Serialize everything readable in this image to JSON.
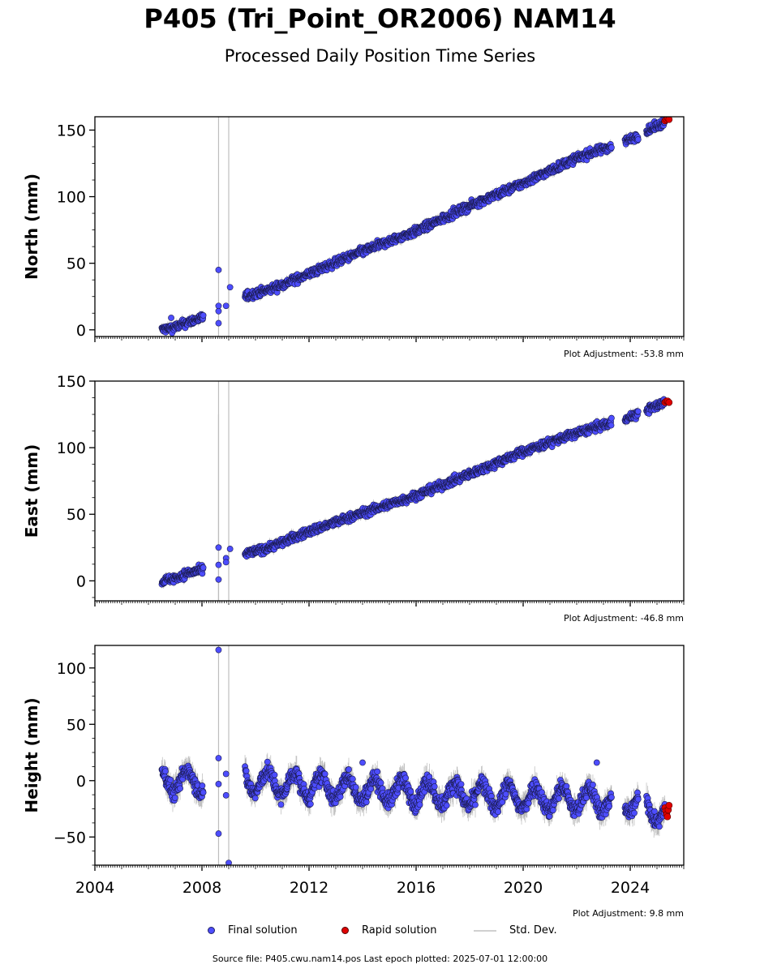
{
  "title": "P405 (Tri_Point_OR2006) NAM14",
  "subtitle": "Processed Daily Position Time Series",
  "footer": "Source file: P405.cwu.nam14.pos  Last epoch plotted: 2025-07-01 12:00:00",
  "legend": {
    "final": "Final solution",
    "rapid": "Rapid solution",
    "std": "Std. Dev."
  },
  "colors": {
    "final_fill": "#4d4dff",
    "final_edge": "#1a1a4d",
    "rapid_fill": "#e00000",
    "std_line": "#bdbdbd"
  },
  "x_ticks": [
    "2004",
    "2008",
    "2012",
    "2016",
    "2020",
    "2024"
  ],
  "chart_data": [
    {
      "type": "scatter",
      "ylabel": "North (mm)",
      "adjustment": "Plot Adjustment: -53.8 mm",
      "xlim": [
        2004,
        2026
      ],
      "ylim": [
        -5,
        160
      ],
      "yticks": [
        0,
        50,
        100,
        150
      ],
      "ytick_labels": [
        "0",
        "50",
        "100",
        "150"
      ],
      "x_tick_labels_shown": false,
      "series": [
        {
          "kind": "final",
          "trend": [
            [
              2006.5,
              0
            ],
            [
              2007.0,
              2
            ],
            [
              2007.5,
              6
            ],
            [
              2008.0,
              9
            ],
            [
              2009.6,
              25
            ],
            [
              2010.5,
              30
            ],
            [
              2012,
              42
            ],
            [
              2014,
              59
            ],
            [
              2016,
              74
            ],
            [
              2018,
              93
            ],
            [
              2020,
              110
            ],
            [
              2022,
              129
            ],
            [
              2024,
              143
            ],
            [
              2025.3,
              156
            ]
          ],
          "gaps": [
            [
              2008.1,
              2009.55
            ],
            [
              2023.3,
              2023.8
            ],
            [
              2024.3,
              2024.6
            ]
          ],
          "scatter": 2.5,
          "outliers": [
            [
              2008.62,
              45
            ],
            [
              2008.62,
              18
            ],
            [
              2008.62,
              14
            ],
            [
              2008.62,
              5
            ],
            [
              2008.9,
              18
            ],
            [
              2009.05,
              32
            ],
            [
              2006.85,
              9
            ]
          ]
        },
        {
          "kind": "rapid",
          "points": [
            [
              2025.3,
              157
            ],
            [
              2025.35,
              158
            ],
            [
              2025.4,
              159
            ],
            [
              2025.45,
              158
            ]
          ]
        }
      ],
      "std_spikes": [
        [
          2008.62,
          -5,
          160
        ],
        [
          2009.0,
          -5,
          160
        ]
      ]
    },
    {
      "type": "scatter",
      "ylabel": "East (mm)",
      "adjustment": "Plot Adjustment: -46.8 mm",
      "xlim": [
        2004,
        2026
      ],
      "ylim": [
        -15,
        150
      ],
      "yticks": [
        0,
        50,
        100,
        150
      ],
      "ytick_labels": [
        "0",
        "50",
        "100",
        "150"
      ],
      "x_tick_labels_shown": false,
      "series": [
        {
          "kind": "final",
          "trend": [
            [
              2006.5,
              0
            ],
            [
              2007.0,
              2
            ],
            [
              2007.5,
              6
            ],
            [
              2008.0,
              8
            ],
            [
              2009.6,
              20
            ],
            [
              2010.5,
              25
            ],
            [
              2012,
              37
            ],
            [
              2014,
              51
            ],
            [
              2016,
              64
            ],
            [
              2018,
              80
            ],
            [
              2020,
              97
            ],
            [
              2022,
              111
            ],
            [
              2024,
              123
            ],
            [
              2025.3,
              134
            ]
          ],
          "gaps": [
            [
              2008.1,
              2009.55
            ],
            [
              2023.3,
              2023.8
            ],
            [
              2024.3,
              2024.6
            ]
          ],
          "scatter": 2.5,
          "outliers": [
            [
              2008.62,
              25
            ],
            [
              2008.62,
              12
            ],
            [
              2008.62,
              1
            ],
            [
              2008.9,
              17
            ],
            [
              2008.9,
              14
            ],
            [
              2009.05,
              24
            ]
          ]
        },
        {
          "kind": "rapid",
          "points": [
            [
              2025.3,
              134
            ],
            [
              2025.35,
              135
            ],
            [
              2025.4,
              135
            ],
            [
              2025.45,
              134
            ]
          ]
        }
      ],
      "std_spikes": [
        [
          2008.62,
          -15,
          150
        ],
        [
          2008.62,
          -15,
          125
        ],
        [
          2009.0,
          -15,
          150
        ]
      ]
    },
    {
      "type": "scatter",
      "ylabel": "Height (mm)",
      "adjustment": "Plot Adjustment: 9.8 mm",
      "xlim": [
        2004,
        2026
      ],
      "ylim": [
        -75,
        120
      ],
      "yticks": [
        -50,
        0,
        50,
        100
      ],
      "ytick_labels": [
        "−50",
        "0",
        "50",
        "100"
      ],
      "x_tick_labels_shown": true,
      "series": [
        {
          "kind": "final",
          "trend": [
            [
              2006.5,
              0
            ],
            [
              2008.0,
              0
            ],
            [
              2009.6,
              0
            ],
            [
              2012,
              -5
            ],
            [
              2016,
              -10
            ],
            [
              2020,
              -15
            ],
            [
              2024,
              -18
            ],
            [
              2025.3,
              -28
            ]
          ],
          "gaps": [
            [
              2008.1,
              2009.55
            ],
            [
              2023.3,
              2023.8
            ],
            [
              2024.3,
              2024.6
            ]
          ],
          "scatter": 6,
          "seasonal": 10,
          "outliers": [
            [
              2008.62,
              116
            ],
            [
              2008.62,
              20
            ],
            [
              2008.62,
              -3
            ],
            [
              2008.62,
              -47
            ],
            [
              2008.9,
              6
            ],
            [
              2008.9,
              -13
            ],
            [
              2009.0,
              -73
            ],
            [
              2014.0,
              16
            ],
            [
              2022.75,
              16
            ]
          ]
        },
        {
          "kind": "rapid",
          "points": [
            [
              2025.3,
              -24
            ],
            [
              2025.33,
              -27
            ],
            [
              2025.36,
              -30
            ],
            [
              2025.39,
              -32
            ],
            [
              2025.42,
              -26
            ],
            [
              2025.45,
              -22
            ]
          ]
        }
      ],
      "std_spikes": [
        [
          2008.62,
          -75,
          120
        ],
        [
          2009.0,
          -75,
          120
        ]
      ]
    }
  ]
}
